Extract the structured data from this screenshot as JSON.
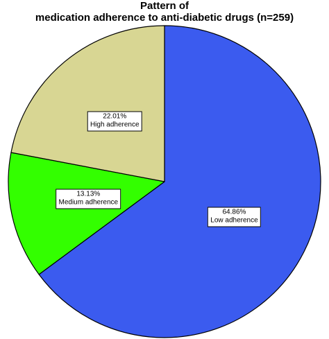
{
  "chart_data": {
    "type": "pie",
    "title_lines": [
      "Pattern of",
      "medication adherence to anti-diabetic drugs (n=259)"
    ],
    "slices": [
      {
        "label": "Low adherence",
        "percent_label": "64.86%",
        "value": 64.86,
        "color": "#3b5bef"
      },
      {
        "label": "Medium adherence",
        "percent_label": "13.13%",
        "value": 13.13,
        "color": "#33ff00"
      },
      {
        "label": "High adherence",
        "percent_label": "22.01%",
        "value": 22.01,
        "color": "#d8d693"
      }
    ],
    "start_position": "12 o'clock",
    "direction": "clockwise",
    "legend": "none"
  }
}
